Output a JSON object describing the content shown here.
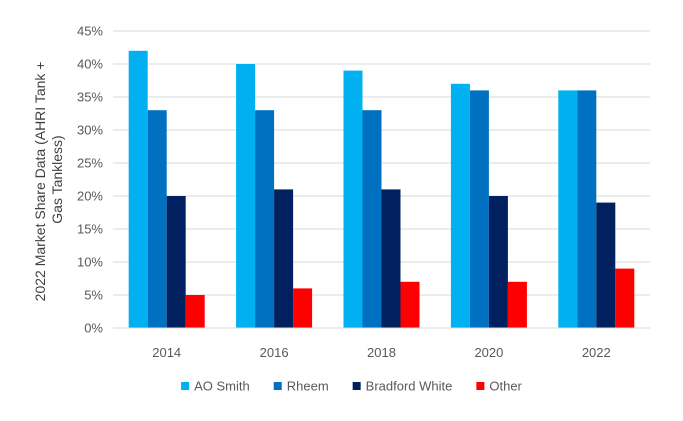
{
  "chart_data": {
    "type": "bar",
    "title": "",
    "ylabel_lines": [
      "2022 Market Share Data (AHRI Tank +",
      "Gas Tankless)"
    ],
    "xlabel": "",
    "categories": [
      "2014",
      "2016",
      "2018",
      "2020",
      "2022"
    ],
    "ylim": [
      0,
      45
    ],
    "yticks": [
      0,
      5,
      10,
      15,
      20,
      25,
      30,
      35,
      40,
      45
    ],
    "ytick_labels": [
      "0%",
      "5%",
      "10%",
      "15%",
      "20%",
      "25%",
      "30%",
      "35%",
      "40%",
      "45%"
    ],
    "grid": true,
    "legend_position": "bottom",
    "series": [
      {
        "name": "AO Smith",
        "color": "#00b0f0",
        "values": [
          42,
          40,
          39,
          37,
          36
        ]
      },
      {
        "name": "Rheem",
        "color": "#0070c0",
        "values": [
          33,
          33,
          33,
          36,
          36
        ]
      },
      {
        "name": "Bradford White",
        "color": "#002060",
        "values": [
          20,
          21,
          21,
          20,
          19
        ]
      },
      {
        "name": "Other",
        "color": "#ff0000",
        "values": [
          5,
          6,
          7,
          7,
          9
        ]
      }
    ]
  }
}
